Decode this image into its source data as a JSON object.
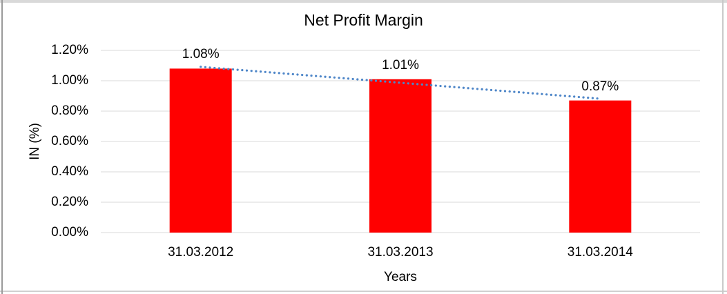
{
  "chart_data": {
    "type": "bar",
    "title": "Net Profit Margin",
    "xlabel": "Years",
    "ylabel": "IN (%)",
    "categories": [
      "31.03.2012",
      "31.03.2013",
      "31.03.2014"
    ],
    "values": [
      1.08,
      1.01,
      0.87
    ],
    "data_labels": [
      "1.08%",
      "1.01%",
      "0.87%"
    ],
    "series_name": "Net Profit Margin",
    "ylim": [
      0,
      1.2
    ],
    "yticks": [
      {
        "value": 0.0,
        "label": "0.00%"
      },
      {
        "value": 0.2,
        "label": "0.20%"
      },
      {
        "value": 0.4,
        "label": "0.40%"
      },
      {
        "value": 0.6,
        "label": "0.60%"
      },
      {
        "value": 0.8,
        "label": "0.80%"
      },
      {
        "value": 1.0,
        "label": "1.00%"
      },
      {
        "value": 1.2,
        "label": "1.20%"
      }
    ],
    "grid": "horizontal",
    "legend": "none",
    "bar_color": "#FF0000",
    "gridline_color": "#D9D9D9",
    "trendline": {
      "type": "linear",
      "style": "dotted",
      "color": "#4E86C8"
    },
    "text_color": "#000000",
    "background_color": "#FFFFFF"
  }
}
